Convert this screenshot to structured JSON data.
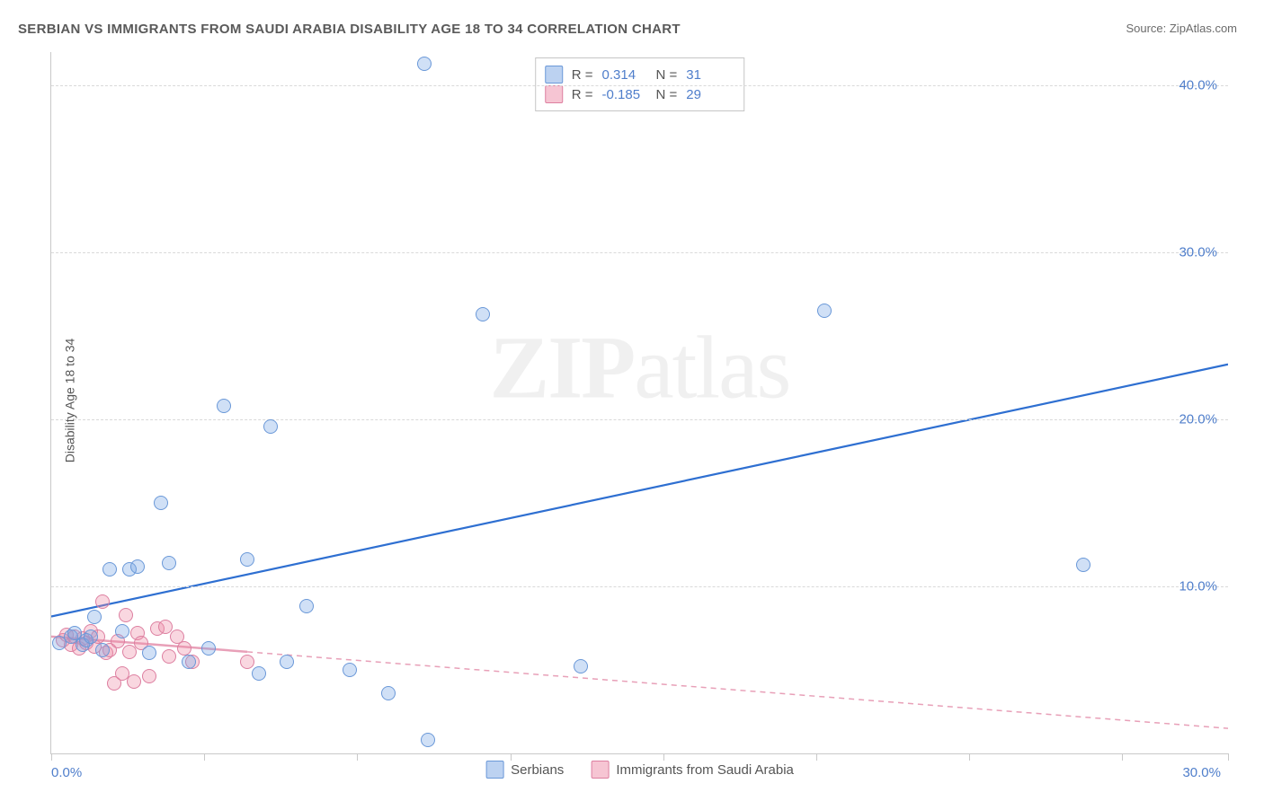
{
  "title": "SERBIAN VS IMMIGRANTS FROM SAUDI ARABIA DISABILITY AGE 18 TO 34 CORRELATION CHART",
  "source": "Source: ZipAtlas.com",
  "ylabel": "Disability Age 18 to 34",
  "watermark_zip": "ZIP",
  "watermark_atlas": "atlas",
  "chart": {
    "type": "scatter",
    "background_color": "#ffffff",
    "grid_color": "#d9d9d9",
    "axis_color": "#c9c9c9",
    "tick_label_color": "#4f7ecb",
    "title_color": "#5a5a5a",
    "xlim": [
      0,
      30
    ],
    "ylim": [
      0,
      42
    ],
    "x_ticks": [
      0,
      3.9,
      7.8,
      11.7,
      15.6,
      19.5,
      23.4,
      27.3,
      30.0
    ],
    "x_tick_labels": {
      "0": "0.0%",
      "30": "30.0%"
    },
    "y_gridlines": [
      10,
      20,
      30,
      40
    ],
    "y_tick_labels": {
      "10": "10.0%",
      "20": "20.0%",
      "30": "30.0%",
      "40": "40.0%"
    },
    "marker_size": 16,
    "series_a": {
      "name": "Serbians",
      "color_fill": "rgba(121,165,228,0.35)",
      "color_border": "#6a98d8",
      "r_label": "R =",
      "r_value": "0.314",
      "n_label": "N =",
      "n_value": "31",
      "trend": {
        "x1": 0,
        "y1": 8.2,
        "x2": 30,
        "y2": 23.3,
        "color": "#2e6fd1",
        "width": 2.2,
        "dash": "none"
      },
      "points": [
        [
          0.2,
          6.6
        ],
        [
          0.5,
          7.0
        ],
        [
          0.6,
          7.2
        ],
        [
          0.8,
          6.5
        ],
        [
          0.9,
          6.8
        ],
        [
          1.0,
          7.0
        ],
        [
          1.1,
          8.2
        ],
        [
          1.3,
          6.2
        ],
        [
          1.5,
          11.0
        ],
        [
          1.8,
          7.3
        ],
        [
          2.0,
          11.0
        ],
        [
          2.2,
          11.2
        ],
        [
          2.5,
          6.0
        ],
        [
          2.8,
          15.0
        ],
        [
          3.0,
          11.4
        ],
        [
          3.5,
          5.5
        ],
        [
          4.0,
          6.3
        ],
        [
          4.4,
          20.8
        ],
        [
          5.0,
          11.6
        ],
        [
          5.3,
          4.8
        ],
        [
          5.6,
          19.6
        ],
        [
          6.0,
          5.5
        ],
        [
          6.5,
          8.8
        ],
        [
          7.6,
          5.0
        ],
        [
          8.6,
          3.6
        ],
        [
          9.5,
          41.3
        ],
        [
          9.6,
          0.8
        ],
        [
          11.0,
          26.3
        ],
        [
          13.5,
          5.2
        ],
        [
          19.7,
          26.5
        ],
        [
          26.3,
          11.3
        ]
      ]
    },
    "series_b": {
      "name": "Immigrants from Saudi Arabia",
      "color_fill": "rgba(238,140,167,0.35)",
      "color_border": "#dd7fa0",
      "r_label": "R =",
      "r_value": "-0.185",
      "n_label": "N =",
      "n_value": "29",
      "trend": {
        "x1": 0,
        "y1": 7.0,
        "x2": 30,
        "y2": 1.5,
        "color": "#e8a0b8",
        "width": 1.5,
        "dash": "6 5"
      },
      "trend_solid_until_x": 5.0,
      "points": [
        [
          0.3,
          6.8
        ],
        [
          0.4,
          7.1
        ],
        [
          0.5,
          6.5
        ],
        [
          0.6,
          7.0
        ],
        [
          0.7,
          6.3
        ],
        [
          0.8,
          6.9
        ],
        [
          0.9,
          6.6
        ],
        [
          1.0,
          7.3
        ],
        [
          1.1,
          6.4
        ],
        [
          1.2,
          7.0
        ],
        [
          1.3,
          9.1
        ],
        [
          1.4,
          6.0
        ],
        [
          1.5,
          6.2
        ],
        [
          1.6,
          4.2
        ],
        [
          1.7,
          6.7
        ],
        [
          1.8,
          4.8
        ],
        [
          1.9,
          8.3
        ],
        [
          2.0,
          6.1
        ],
        [
          2.1,
          4.3
        ],
        [
          2.2,
          7.2
        ],
        [
          2.3,
          6.6
        ],
        [
          2.5,
          4.6
        ],
        [
          2.7,
          7.5
        ],
        [
          2.9,
          7.6
        ],
        [
          3.0,
          5.8
        ],
        [
          3.2,
          7.0
        ],
        [
          3.4,
          6.3
        ],
        [
          3.6,
          5.5
        ],
        [
          5.0,
          5.5
        ]
      ]
    }
  }
}
